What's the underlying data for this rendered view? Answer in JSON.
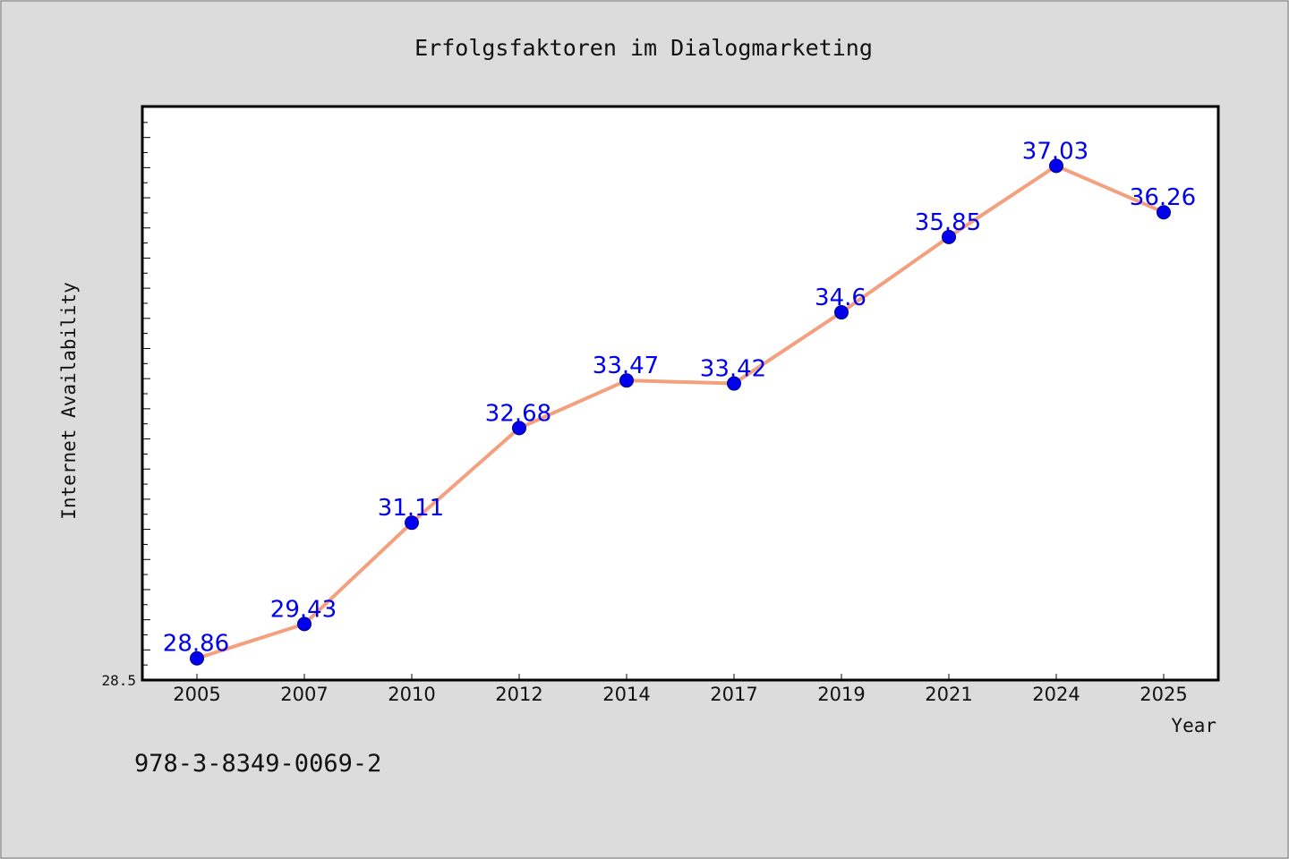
{
  "chart_data": {
    "type": "line",
    "title": "Erfolgsfaktoren im Dialogmarketing",
    "xlabel": "Year",
    "ylabel": "Internet Availability",
    "categories": [
      "2005",
      "2007",
      "2010",
      "2012",
      "2014",
      "2017",
      "2019",
      "2021",
      "2024",
      "2025"
    ],
    "series": [
      {
        "values": [
          28.86,
          29.43,
          31.11,
          32.68,
          33.47,
          33.42,
          34.6,
          35.85,
          37.03,
          36.26
        ],
        "data_labels": [
          "28.86",
          "29.43",
          "31.11",
          "32.68",
          "33.47",
          "33.42",
          "34.6",
          "35.85",
          "37.03",
          "36.26"
        ]
      }
    ],
    "ylim": [
      28.5,
      38.0
    ],
    "y_tick_labels": [
      "28.5"
    ],
    "grid": false,
    "legend": "none",
    "colors": {
      "line": "#f4a07e",
      "marker": "#0000ee",
      "data_label": "#0000ee",
      "background": "#dcdcdc",
      "plot_background": "#ffffff"
    }
  },
  "footer": {
    "isbn": "978-3-8349-0069-2"
  }
}
